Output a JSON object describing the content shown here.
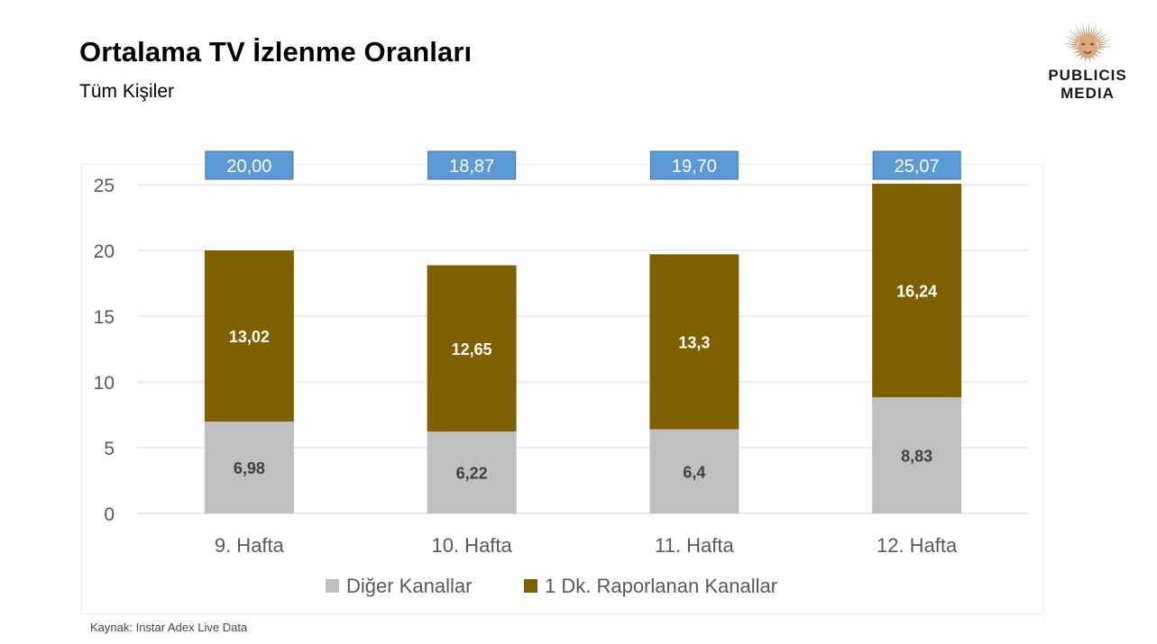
{
  "header": {
    "title": "Ortalama TV İzlenme Oranları",
    "subtitle": "Tüm Kişiler"
  },
  "logo": {
    "icon": "lion-head-icon",
    "line1": "PUBLICIS",
    "line2": "MEDIA",
    "color": "#c8956a"
  },
  "footer": {
    "source": "Kaynak: Instar  Adex Live Data"
  },
  "chart_data": {
    "type": "bar",
    "stacked": true,
    "categories": [
      "9. Hafta",
      "10. Hafta",
      "11. Hafta",
      "12. Hafta"
    ],
    "series": [
      {
        "name": "Diğer Kanallar",
        "values": [
          6.98,
          6.22,
          6.4,
          8.83
        ],
        "labels": [
          "6,98",
          "6,22",
          "6,4",
          "8,83"
        ],
        "color": "#bfbfbf",
        "label_color": "#404040"
      },
      {
        "name": "1 Dk. Raporlanan Kanallar",
        "values": [
          13.02,
          12.65,
          13.3,
          16.24
        ],
        "labels": [
          "13,02",
          "12,65",
          "13,3",
          "16,24"
        ],
        "color": "#7f6000",
        "label_color": "#ffffff"
      }
    ],
    "totals": [
      "20,00",
      "18,87",
      "19,70",
      "25,07"
    ],
    "total_box_color": "#5b9bd5",
    "ylim": [
      0,
      25
    ],
    "yticks": [
      "0",
      "5",
      "10",
      "15",
      "20",
      "25"
    ],
    "grid": true,
    "legend_position": "bottom"
  }
}
